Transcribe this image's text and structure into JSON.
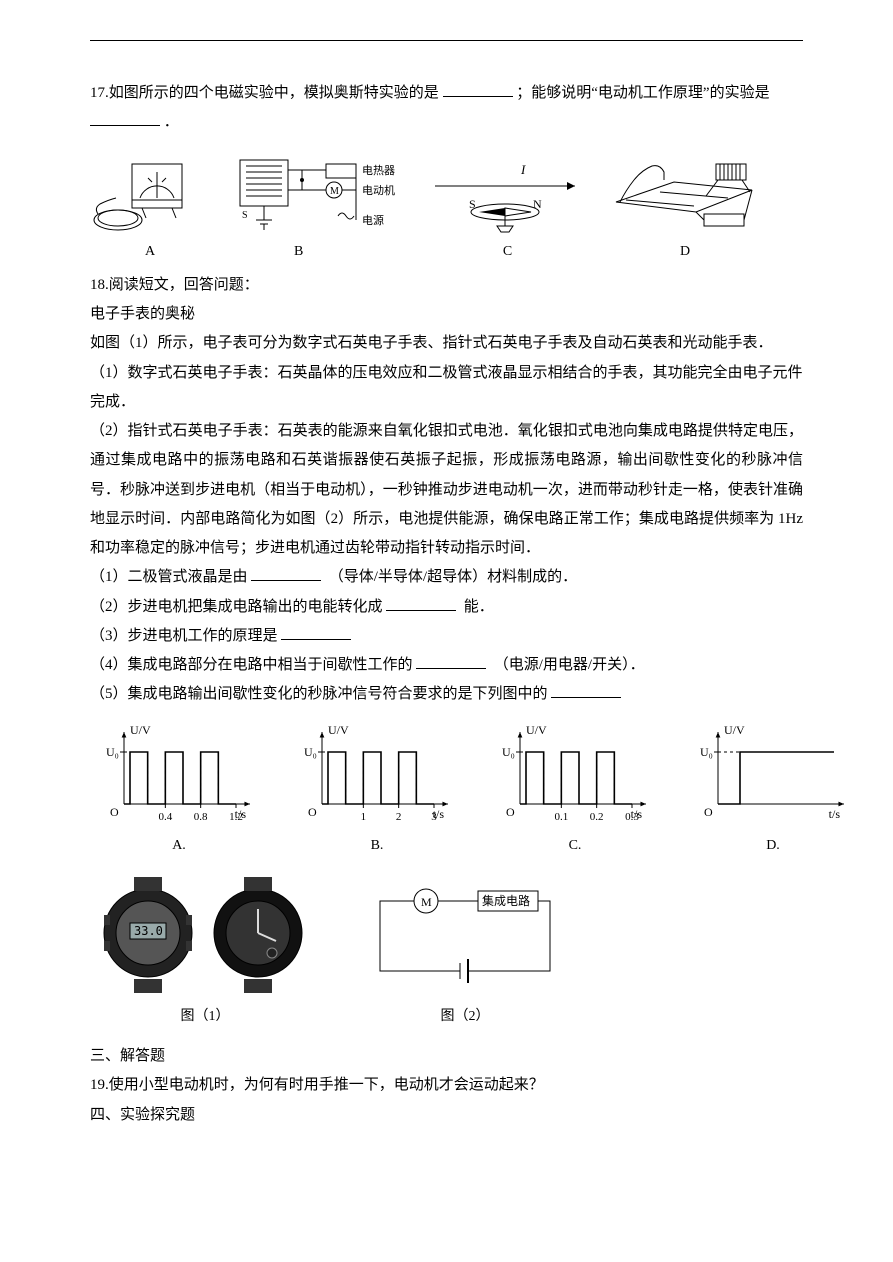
{
  "q17": {
    "text_a": "17.如图所示的四个电磁实验中，模拟奥斯特实验的是",
    "text_b": "；能够说明“电动机工作原理”的实验是",
    "text_c": "．",
    "labels": [
      "A",
      "B",
      "C",
      "D"
    ],
    "fig_b_labels": {
      "heater": "电热器",
      "motor": "电动机",
      "source": "电源"
    },
    "fig_c_labels": {
      "i": "I",
      "s": "S",
      "n": "N"
    }
  },
  "q18": {
    "stem": "18.阅读短文，回答问题：",
    "title": "电子手表的奥秘",
    "p1": "如图（1）所示，电子表可分为数字式石英电子手表、指针式石英电子手表及自动石英表和光动能手表．",
    "p2": "（1）数字式石英电子手表：石英晶体的压电效应和二极管式液晶显示相结合的手表，其功能完全由电子元件完成．",
    "p3": "（2）指针式石英电子手表：石英表的能源来自氧化银扣式电池．氧化银扣式电池向集成电路提供特定电压，通过集成电路中的振荡电路和石英谐振器使石英振子起振，形成振荡电路源，输出间歇性变化的秒脉冲信号．秒脉冲送到步进电机（相当于电动机），一秒钟推动步进电动机一次，进而带动秒针走一格，使表针准确地显示时间．内部电路简化为如图（2）所示，电池提供能源，确保电路正常工作；集成电路提供频率为 1Hz 和功率稳定的脉冲信号；步进电机通过齿轮带动指针转动指示时间．",
    "sub1_a": "（1）二极管式液晶是由",
    "sub1_b": "（导体/半导体/超导体）材料制成的．",
    "sub2_a": "（2）步进电机把集成电路输出的电能转化成",
    "sub2_b": "能．",
    "sub3_a": "（3）步进电机工作的原理是",
    "sub4_a": "（4）集成电路部分在电路中相当于间歇性工作的",
    "sub4_b": "（电源/用电器/开关）．",
    "sub5_a": "（5）集成电路输出间歇性变化的秒脉冲信号符合要求的是下列图中的",
    "pulse": {
      "ylabel": "U/V",
      "u0": "U₀",
      "xlabel": "t/s",
      "origin": "O",
      "options": [
        {
          "label": "A.",
          "ticks": [
            "0.4",
            "0.8",
            "1.2"
          ],
          "period": 0.4
        },
        {
          "label": "B.",
          "ticks": [
            "1",
            "2",
            "3"
          ],
          "period": 1.0
        },
        {
          "label": "C.",
          "ticks": [
            "0.1",
            "0.2",
            "0.3"
          ],
          "period": 0.1
        },
        {
          "label": "D.",
          "ticks": [],
          "period": 0
        }
      ]
    },
    "fig1_label": "图（1）",
    "fig2_label": "图（2）",
    "fig2_chip": "集成电路",
    "fig2_m": "M",
    "watch_display": "33.0"
  },
  "sec3": "三、解答题",
  "q19": "19.使用小型电动机时，为何有时用手推一下，电动机才会运动起来？",
  "sec4": "四、实验探究题",
  "colors": {
    "text": "#000000",
    "line": "#000000",
    "fig_border": "#222222",
    "bg": "#ffffff"
  }
}
